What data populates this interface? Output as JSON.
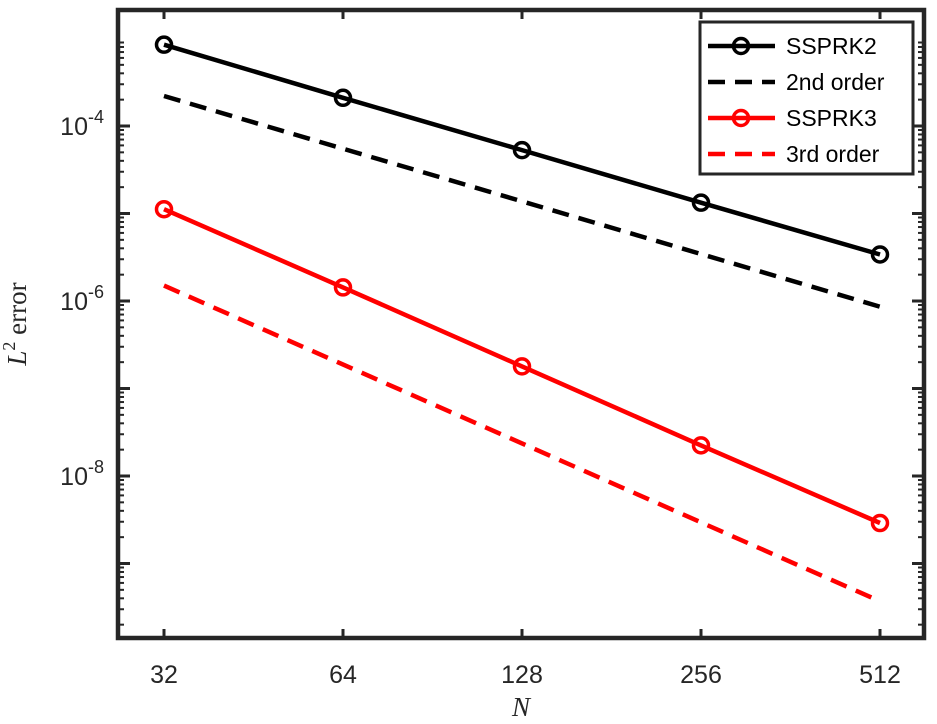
{
  "chart_data": {
    "type": "line",
    "x_scale": "log2",
    "y_scale": "log10",
    "xlabel": "N",
    "ylabel": {
      "symbol": "L",
      "superscript": "2",
      "text": " error"
    },
    "xlim": [
      32,
      512
    ],
    "ylim_log10": [
      -10,
      -3
    ],
    "x_ticks": [
      32,
      64,
      128,
      256,
      512
    ],
    "x_tick_labels": [
      "32",
      "64",
      "128",
      "256",
      "512"
    ],
    "y_ticks": [
      {
        "base": "10",
        "exponent": "-4",
        "value": 0.0001
      },
      {
        "base": "10",
        "exponent": "-6",
        "value": 1e-06
      },
      {
        "base": "10",
        "exponent": "-8",
        "value": 1e-08
      }
    ],
    "legend_position": "top-right",
    "series": [
      {
        "name": "SSPRK2",
        "color": "#000000",
        "style": "solid",
        "marker": "circle",
        "x": [
          32,
          64,
          128,
          256,
          512
        ],
        "y": [
          0.00085,
          0.00021,
          5.3e-05,
          1.33e-05,
          3.4e-06
        ]
      },
      {
        "name": "2nd order",
        "color": "#000000",
        "style": "dashed",
        "marker": "none",
        "x": [
          32,
          512
        ],
        "y": [
          0.00022,
          8.6e-07
        ]
      },
      {
        "name": "SSPRK3",
        "color": "#ff0000",
        "style": "solid",
        "marker": "circle",
        "x": [
          32,
          64,
          128,
          256,
          512
        ],
        "y": [
          1.12e-05,
          1.43e-06,
          1.79e-07,
          2.24e-08,
          2.9e-09
        ]
      },
      {
        "name": "3rd order",
        "color": "#ff0000",
        "style": "dashed",
        "marker": "none",
        "x": [
          32,
          512
        ],
        "y": [
          1.5e-06,
          3.7e-10
        ]
      }
    ]
  }
}
